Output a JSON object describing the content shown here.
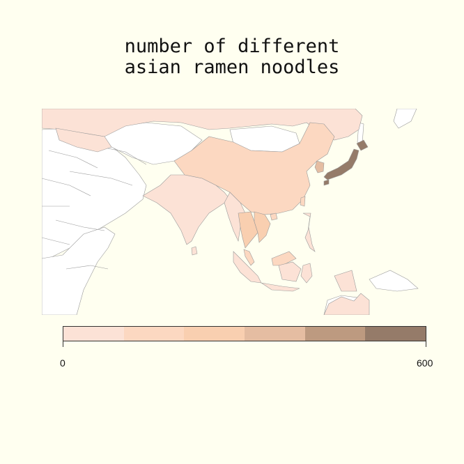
{
  "title": {
    "line1": "number of different",
    "line2": "asian ramen noodles"
  },
  "legend": {
    "min_label": "0",
    "max_label": "600",
    "range": [
      0,
      600
    ],
    "colors": [
      "#fce2d6",
      "#fcd8c1",
      "#f9cfb0",
      "#e5bda2",
      "#bd9a80",
      "#957b69"
    ]
  },
  "map_colors": {
    "none": "#ffffff",
    "border": "#9a9a9a"
  }
}
